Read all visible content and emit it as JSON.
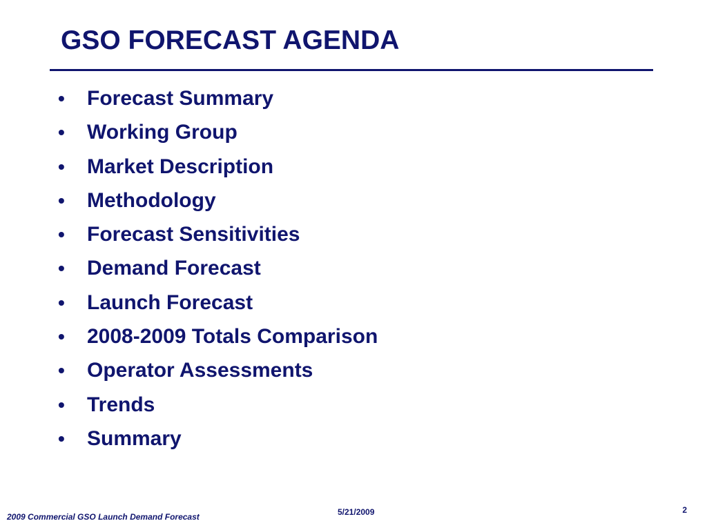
{
  "slide": {
    "title": "GSO FORECAST AGENDA",
    "bullet_char": "•",
    "agenda_items": [
      "Forecast Summary",
      "Working Group",
      "Market Description",
      "Methodology",
      "Forecast Sensitivities",
      "Demand Forecast",
      "Launch Forecast",
      "2008-2009 Totals Comparison",
      "Operator Assessments",
      "Trends",
      "Summary"
    ],
    "footer": {
      "presentation_name": "2009 Commercial GSO Launch Demand Forecast",
      "date": "5/21/2009",
      "page_number": "2"
    }
  },
  "colors": {
    "text": "#10156e",
    "rule": "#10156e",
    "background": "#ffffff"
  }
}
